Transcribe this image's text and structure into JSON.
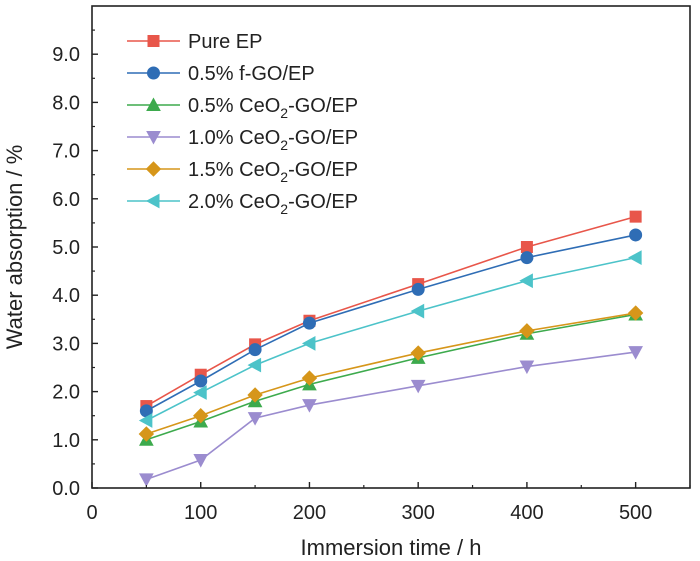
{
  "chart_data": {
    "type": "line",
    "title": "",
    "xlabel": "Immersion time / h",
    "ylabel": "Water absorption / %",
    "xlim": [
      0,
      550
    ],
    "ylim": [
      0,
      10
    ],
    "x_ticks": [
      "0",
      "100",
      "200",
      "300",
      "400",
      "500"
    ],
    "y_ticks": [
      "0.0",
      "1.0",
      "2.0",
      "3.0",
      "4.0",
      "5.0",
      "6.0",
      "7.0",
      "8.0",
      "9.0"
    ],
    "x": [
      50,
      100,
      150,
      200,
      300,
      400,
      500
    ],
    "legend_position": "top-left",
    "grid": false,
    "series": [
      {
        "name_main": "Pure EP",
        "name_sub": "",
        "name_rest": "",
        "color": "#e8564a",
        "marker": "square",
        "values": [
          1.7,
          2.35,
          2.98,
          3.47,
          4.23,
          5.0,
          5.63
        ]
      },
      {
        "name_main": "0.5% f-GO/EP",
        "name_sub": "",
        "name_rest": "",
        "color": "#2f6db5",
        "marker": "circle",
        "values": [
          1.6,
          2.22,
          2.87,
          3.42,
          4.12,
          4.78,
          5.25
        ]
      },
      {
        "name_main": "0.5% CeO",
        "name_sub": "2",
        "name_rest": "-GO/EP",
        "color": "#3daa4d",
        "marker": "triangle-up",
        "values": [
          1.0,
          1.38,
          1.8,
          2.15,
          2.7,
          3.2,
          3.6
        ]
      },
      {
        "name_main": "1.0% CeO",
        "name_sub": "2",
        "name_rest": "-GO/EP",
        "color": "#9b8ccf",
        "marker": "triangle-down",
        "values": [
          0.18,
          0.58,
          1.45,
          1.72,
          2.12,
          2.52,
          2.82
        ]
      },
      {
        "name_main": "1.5% CeO",
        "name_sub": "2",
        "name_rest": "-GO/EP",
        "color": "#d6961a",
        "marker": "diamond",
        "values": [
          1.12,
          1.5,
          1.93,
          2.28,
          2.8,
          3.26,
          3.63
        ]
      },
      {
        "name_main": "2.0% CeO",
        "name_sub": "2",
        "name_rest": "-GO/EP",
        "color": "#4cc3c9",
        "marker": "triangle-left",
        "values": [
          1.4,
          1.98,
          2.55,
          3.0,
          3.67,
          4.3,
          4.78
        ]
      }
    ]
  }
}
